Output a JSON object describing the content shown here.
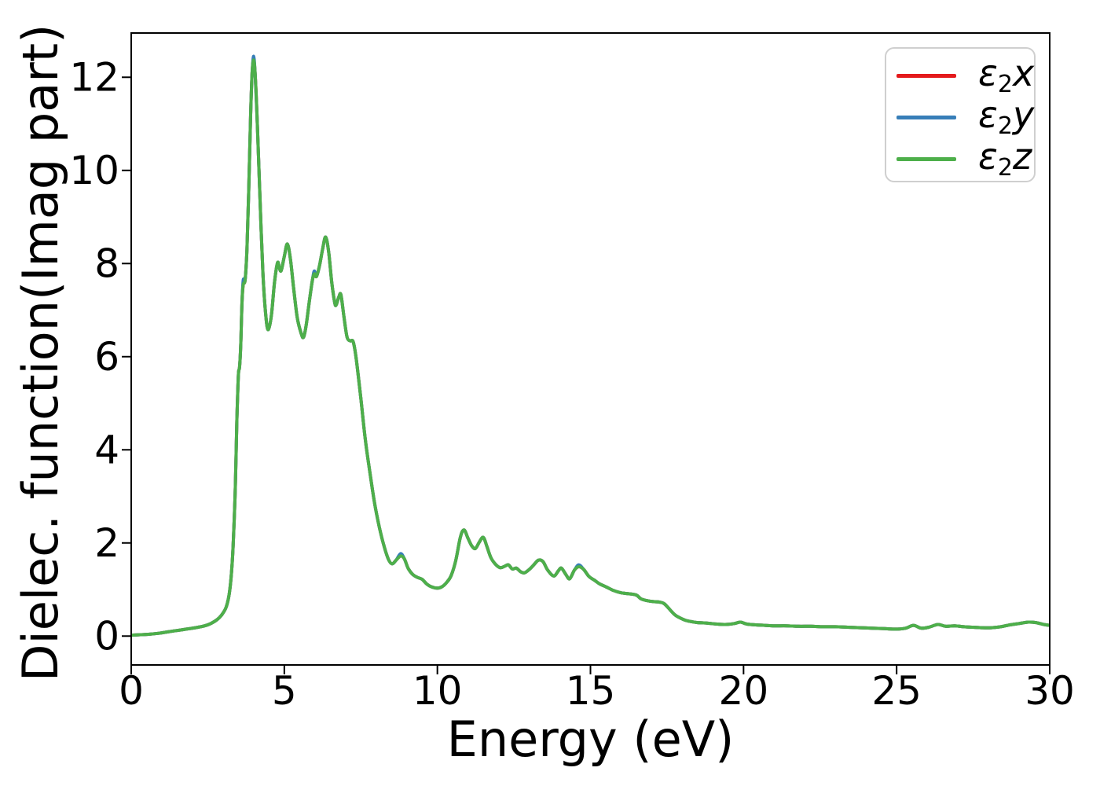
{
  "chart_data": {
    "type": "line",
    "title": "",
    "xlabel": "Energy (eV)",
    "ylabel": "Dielec. function(Imag part)",
    "xlim": [
      0,
      30
    ],
    "ylim": [
      -0.62,
      12.95
    ],
    "xticks": [
      0,
      5,
      10,
      15,
      20,
      25,
      30
    ],
    "yticks": [
      0,
      2,
      4,
      6,
      8,
      10,
      12
    ],
    "grid": false,
    "legend_position": "upper right",
    "overlap_note": "All three dielectric-function components overlap almost exactly; green (z) is drawn on top, blue (y) peeks out at sharp peaks.",
    "points": [
      [
        0,
        0.02
      ],
      [
        0.3,
        0.03
      ],
      [
        0.6,
        0.04
      ],
      [
        0.9,
        0.06
      ],
      [
        1.2,
        0.09
      ],
      [
        1.5,
        0.12
      ],
      [
        1.8,
        0.15
      ],
      [
        2.1,
        0.18
      ],
      [
        2.4,
        0.22
      ],
      [
        2.6,
        0.27
      ],
      [
        2.8,
        0.35
      ],
      [
        2.95,
        0.45
      ],
      [
        3.1,
        0.62
      ],
      [
        3.2,
        0.9
      ],
      [
        3.28,
        1.4
      ],
      [
        3.34,
        2.1
      ],
      [
        3.4,
        3.2
      ],
      [
        3.45,
        4.6
      ],
      [
        3.5,
        5.6
      ],
      [
        3.54,
        5.78
      ],
      [
        3.58,
        6.3
      ],
      [
        3.62,
        7.2
      ],
      [
        3.66,
        7.55
      ],
      [
        3.72,
        7.65
      ],
      [
        3.78,
        8.3
      ],
      [
        3.84,
        9.6
      ],
      [
        3.9,
        11.2
      ],
      [
        3.95,
        12.1
      ],
      [
        4,
        12.37
      ],
      [
        4.05,
        12.05
      ],
      [
        4.12,
        11
      ],
      [
        4.2,
        9.5
      ],
      [
        4.3,
        7.8
      ],
      [
        4.4,
        6.85
      ],
      [
        4.48,
        6.58
      ],
      [
        4.58,
        6.9
      ],
      [
        4.68,
        7.6
      ],
      [
        4.78,
        8.02
      ],
      [
        4.84,
        7.9
      ],
      [
        4.9,
        7.85
      ],
      [
        5,
        8.15
      ],
      [
        5.1,
        8.42
      ],
      [
        5.2,
        8.1
      ],
      [
        5.3,
        7.5
      ],
      [
        5.42,
        6.85
      ],
      [
        5.55,
        6.5
      ],
      [
        5.63,
        6.42
      ],
      [
        5.72,
        6.7
      ],
      [
        5.82,
        7.2
      ],
      [
        5.92,
        7.65
      ],
      [
        5.98,
        7.78
      ],
      [
        6.05,
        7.72
      ],
      [
        6.15,
        7.95
      ],
      [
        6.25,
        8.3
      ],
      [
        6.35,
        8.57
      ],
      [
        6.45,
        8.25
      ],
      [
        6.55,
        7.6
      ],
      [
        6.65,
        7.15
      ],
      [
        6.7,
        7.12
      ],
      [
        6.78,
        7.28
      ],
      [
        6.85,
        7.33
      ],
      [
        6.95,
        6.85
      ],
      [
        7.05,
        6.42
      ],
      [
        7.15,
        6.34
      ],
      [
        7.25,
        6.32
      ],
      [
        7.35,
        5.95
      ],
      [
        7.5,
        5.1
      ],
      [
        7.65,
        4.2
      ],
      [
        7.8,
        3.5
      ],
      [
        7.95,
        2.85
      ],
      [
        8.1,
        2.35
      ],
      [
        8.25,
        1.95
      ],
      [
        8.4,
        1.65
      ],
      [
        8.52,
        1.55
      ],
      [
        8.65,
        1.63
      ],
      [
        8.8,
        1.72
      ],
      [
        8.92,
        1.66
      ],
      [
        9.05,
        1.45
      ],
      [
        9.2,
        1.32
      ],
      [
        9.35,
        1.26
      ],
      [
        9.5,
        1.22
      ],
      [
        9.65,
        1.12
      ],
      [
        9.8,
        1.06
      ],
      [
        10,
        1.03
      ],
      [
        10.15,
        1.06
      ],
      [
        10.3,
        1.15
      ],
      [
        10.45,
        1.3
      ],
      [
        10.6,
        1.62
      ],
      [
        10.75,
        2.12
      ],
      [
        10.87,
        2.28
      ],
      [
        11,
        2.1
      ],
      [
        11.12,
        1.94
      ],
      [
        11.24,
        1.88
      ],
      [
        11.37,
        2.02
      ],
      [
        11.5,
        2.12
      ],
      [
        11.62,
        1.92
      ],
      [
        11.75,
        1.68
      ],
      [
        11.9,
        1.54
      ],
      [
        12.05,
        1.47
      ],
      [
        12.2,
        1.5
      ],
      [
        12.32,
        1.53
      ],
      [
        12.45,
        1.44
      ],
      [
        12.58,
        1.46
      ],
      [
        12.72,
        1.38
      ],
      [
        12.85,
        1.36
      ],
      [
        13,
        1.43
      ],
      [
        13.15,
        1.53
      ],
      [
        13.3,
        1.63
      ],
      [
        13.45,
        1.6
      ],
      [
        13.6,
        1.42
      ],
      [
        13.8,
        1.29
      ],
      [
        13.95,
        1.4
      ],
      [
        14.05,
        1.46
      ],
      [
        14.2,
        1.32
      ],
      [
        14.32,
        1.23
      ],
      [
        14.48,
        1.42
      ],
      [
        14.62,
        1.49
      ],
      [
        14.78,
        1.43
      ],
      [
        14.95,
        1.28
      ],
      [
        15.13,
        1.2
      ],
      [
        15.3,
        1.12
      ],
      [
        15.5,
        1.06
      ],
      [
        15.75,
        0.98
      ],
      [
        16,
        0.93
      ],
      [
        16.25,
        0.91
      ],
      [
        16.5,
        0.88
      ],
      [
        16.65,
        0.8
      ],
      [
        16.85,
        0.76
      ],
      [
        17.05,
        0.74
      ],
      [
        17.25,
        0.73
      ],
      [
        17.4,
        0.7
      ],
      [
        17.55,
        0.6
      ],
      [
        17.75,
        0.46
      ],
      [
        17.9,
        0.4
      ],
      [
        18.1,
        0.34
      ],
      [
        18.3,
        0.31
      ],
      [
        18.5,
        0.29
      ],
      [
        18.8,
        0.28
      ],
      [
        19.1,
        0.26
      ],
      [
        19.4,
        0.25
      ],
      [
        19.7,
        0.27
      ],
      [
        19.9,
        0.3
      ],
      [
        20.1,
        0.26
      ],
      [
        20.4,
        0.24
      ],
      [
        20.7,
        0.23
      ],
      [
        21,
        0.22
      ],
      [
        21.4,
        0.22
      ],
      [
        21.8,
        0.21
      ],
      [
        22.2,
        0.21
      ],
      [
        22.6,
        0.2
      ],
      [
        23,
        0.2
      ],
      [
        23.4,
        0.19
      ],
      [
        23.8,
        0.18
      ],
      [
        24.2,
        0.17
      ],
      [
        24.6,
        0.16
      ],
      [
        25,
        0.15
      ],
      [
        25.3,
        0.17
      ],
      [
        25.55,
        0.23
      ],
      [
        25.8,
        0.17
      ],
      [
        26.05,
        0.19
      ],
      [
        26.35,
        0.25
      ],
      [
        26.6,
        0.21
      ],
      [
        26.9,
        0.22
      ],
      [
        27.2,
        0.2
      ],
      [
        27.5,
        0.19
      ],
      [
        27.8,
        0.18
      ],
      [
        28.1,
        0.18
      ],
      [
        28.4,
        0.2
      ],
      [
        28.7,
        0.24
      ],
      [
        29,
        0.27
      ],
      [
        29.3,
        0.3
      ],
      [
        29.55,
        0.29
      ],
      [
        29.8,
        0.25
      ],
      [
        30,
        0.23
      ]
    ],
    "series": [
      {
        "id": "e2x",
        "label": "ε2x",
        "label_parts": [
          "ε",
          "2",
          "x"
        ],
        "color": "#e41a1c",
        "deltas": []
      },
      {
        "id": "e2y",
        "label": "ε2y",
        "label_parts": [
          "ε",
          "2",
          "y"
        ],
        "color": "#377eb8",
        "deltas": [
          [
            3.66,
            0.1
          ],
          [
            4,
            0.08
          ],
          [
            5.98,
            0.06
          ],
          [
            8.8,
            0.05
          ],
          [
            14.62,
            0.04
          ]
        ]
      },
      {
        "id": "e2z",
        "label": "ε2z",
        "label_parts": [
          "ε",
          "2",
          "z"
        ],
        "color": "#4daf4a",
        "deltas": []
      }
    ]
  },
  "colors": {
    "spine": "#000000",
    "tick_label": "#000000",
    "legend_border": "#cfcfcf",
    "background": "#ffffff"
  }
}
